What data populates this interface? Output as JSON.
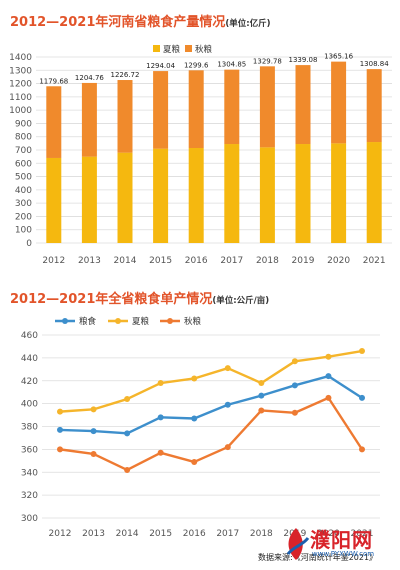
{
  "chart1": {
    "title": "2012—2021年河南省粮食产量情况",
    "unit": "(单位:亿斤)",
    "chart_data": {
      "type": "bar",
      "stacked": true,
      "categories": [
        "2012",
        "2013",
        "2014",
        "2015",
        "2016",
        "2017",
        "2018",
        "2019",
        "2020",
        "2021"
      ],
      "series": [
        {
          "name": "夏粮",
          "values": [
            640,
            650,
            680,
            710,
            715,
            745,
            720,
            745,
            750,
            760
          ]
        },
        {
          "name": "秋粮",
          "values": [
            539.68,
            554.76,
            546.72,
            584.04,
            584.6,
            559.85,
            609.78,
            594.08,
            615.16,
            548.84
          ]
        }
      ],
      "totals": [
        "1179.68",
        "1204.76",
        "1226.72",
        "1294.04",
        "1299.6",
        "1304.85",
        "1329.78",
        "1339.08",
        "1365.16",
        "1308.84"
      ],
      "ylim": [
        0,
        1400
      ],
      "yticks": [
        0,
        100,
        200,
        300,
        400,
        500,
        600,
        700,
        800,
        900,
        1000,
        1100,
        1200,
        1300,
        1400
      ],
      "grid": true,
      "legend": "top-left",
      "colors": {
        "夏粮": "#f5b80f",
        "秋粮": "#f08a2c"
      }
    }
  },
  "chart2": {
    "title": "2012—2021年全省粮食单产情况",
    "unit": "(单位:公斤/亩)",
    "chart_data": {
      "type": "line",
      "x": [
        "2012",
        "2013",
        "2014",
        "2015",
        "2016",
        "2017",
        "2018",
        "2019",
        "2020",
        "2021"
      ],
      "series": [
        {
          "name": "粮食",
          "values": [
            377,
            376,
            374,
            388,
            387,
            399,
            407,
            416,
            424,
            405
          ],
          "color": "#3d8fcc"
        },
        {
          "name": "夏粮",
          "values": [
            393,
            395,
            404,
            418,
            422,
            431,
            418,
            437,
            441,
            446
          ],
          "color": "#f5b52b"
        },
        {
          "name": "秋粮",
          "values": [
            360,
            356,
            342,
            357,
            349,
            362,
            394,
            392,
            405,
            360
          ],
          "color": "#ee7a32"
        }
      ],
      "ylim": [
        300,
        460
      ],
      "yticks": [
        300,
        320,
        340,
        360,
        380,
        400,
        420,
        440,
        460
      ],
      "grid": true,
      "legend": "top"
    }
  },
  "source": "数据来源:《河南统计年鉴2021》",
  "watermark": {
    "name": "濮阳网",
    "url": "www.PYXWW.com"
  }
}
